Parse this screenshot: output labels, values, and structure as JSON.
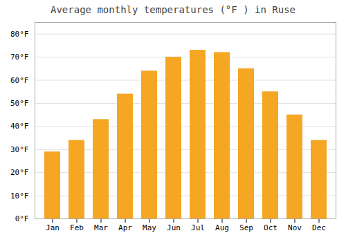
{
  "chart_data": {
    "type": "bar",
    "title": "Average monthly temperatures (°F ) in Ruse",
    "categories": [
      "Jan",
      "Feb",
      "Mar",
      "Apr",
      "May",
      "Jun",
      "Jul",
      "Aug",
      "Sep",
      "Oct",
      "Nov",
      "Dec"
    ],
    "values": [
      29,
      34,
      43,
      54,
      64,
      70,
      73,
      72,
      65,
      55,
      45,
      34
    ],
    "color": "#F5A623",
    "ylim": [
      0,
      85
    ],
    "yticks": [
      {
        "value": 0,
        "label": "0°F"
      },
      {
        "value": 10,
        "label": "10°F"
      },
      {
        "value": 20,
        "label": "20°F"
      },
      {
        "value": 30,
        "label": "30°F"
      },
      {
        "value": 40,
        "label": "40°F"
      },
      {
        "value": 50,
        "label": "50°F"
      },
      {
        "value": 60,
        "label": "60°F"
      },
      {
        "value": 70,
        "label": "70°F"
      },
      {
        "value": 80,
        "label": "80°F"
      }
    ],
    "grid": true
  }
}
